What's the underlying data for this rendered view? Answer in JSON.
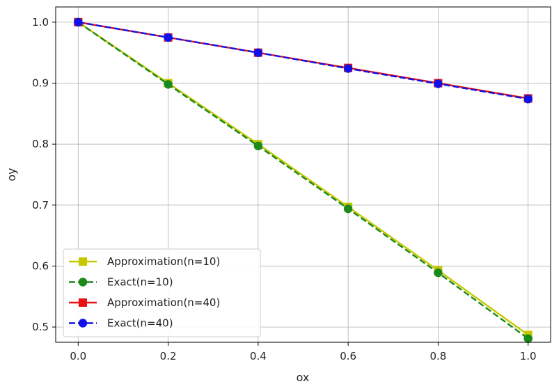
{
  "chart_data": {
    "type": "line",
    "xlabel": "ox",
    "ylabel": "oy",
    "xlim": [
      -0.05,
      1.05
    ],
    "ylim": [
      0.475,
      1.025
    ],
    "xticks": [
      0.0,
      0.2,
      0.4,
      0.6,
      0.8,
      1.0
    ],
    "yticks": [
      0.5,
      0.6,
      0.7,
      0.8,
      0.9,
      1.0
    ],
    "xtick_labels": [
      "0.0",
      "0.2",
      "0.4",
      "0.6",
      "0.8",
      "1.0"
    ],
    "ytick_labels": [
      "0.5",
      "0.6",
      "0.7",
      "0.8",
      "0.9",
      "1.0"
    ],
    "grid": true,
    "legend_position": "lower-left",
    "series": [
      {
        "name": "Approximation(n=10)",
        "color": "#c8c800",
        "marker": "square",
        "linestyle": "solid",
        "x": [
          0.0,
          0.2,
          0.4,
          0.6,
          0.8,
          1.0
        ],
        "y": [
          1.0,
          0.9,
          0.8,
          0.697,
          0.593,
          0.487
        ]
      },
      {
        "name": "Exact(n=10)",
        "color": "#1a8a1a",
        "marker": "circle",
        "linestyle": "dashed",
        "x": [
          0.0,
          0.2,
          0.4,
          0.6,
          0.8,
          1.0
        ],
        "y": [
          1.0,
          0.898,
          0.797,
          0.694,
          0.589,
          0.481
        ]
      },
      {
        "name": "Approximation(n=40)",
        "color": "#e81010",
        "marker": "square",
        "linestyle": "solid",
        "x": [
          0.0,
          0.2,
          0.4,
          0.6,
          0.8,
          1.0
        ],
        "y": [
          1.0,
          0.975,
          0.95,
          0.925,
          0.9,
          0.875
        ]
      },
      {
        "name": "Exact(n=40)",
        "color": "#1010e8",
        "marker": "circle",
        "linestyle": "dashed",
        "x": [
          0.0,
          0.2,
          0.4,
          0.6,
          0.8,
          1.0
        ],
        "y": [
          1.0,
          0.975,
          0.95,
          0.924,
          0.899,
          0.874
        ]
      }
    ]
  }
}
